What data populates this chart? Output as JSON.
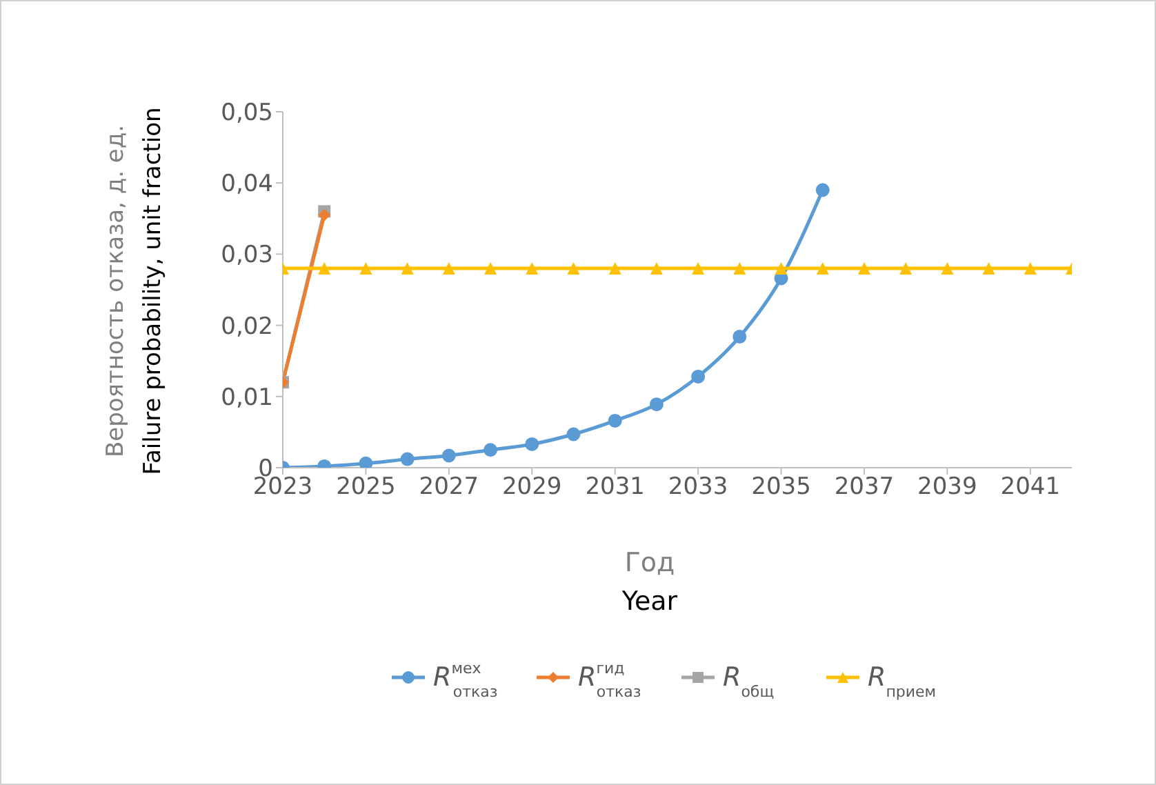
{
  "chart_data": {
    "type": "line",
    "xlabel": "Год\nYear",
    "ylabel": "Вероятность отказа, д. ед.\nFailure probability, unit fraction",
    "x": [
      2023,
      2024,
      2025,
      2026,
      2027,
      2028,
      2029,
      2030,
      2031,
      2032,
      2033,
      2034,
      2035,
      2036,
      2037,
      2038,
      2039,
      2040,
      2041,
      2042
    ],
    "xlim": [
      2023,
      2042
    ],
    "xticks": [
      2023,
      2025,
      2027,
      2029,
      2031,
      2033,
      2035,
      2037,
      2039,
      2041
    ],
    "ylim": [
      0,
      0.05
    ],
    "yticks": [
      0,
      {
        "value": 0.01,
        "label": "0,01"
      },
      {
        "value": 0.02,
        "label": "0,02"
      },
      {
        "value": 0.03,
        "label": "0,03"
      },
      {
        "value": 0.04,
        "label": "0,04"
      },
      {
        "value": 0.05,
        "label": "0,05"
      }
    ],
    "grid": false,
    "legend": "bottom",
    "line_style": "solid",
    "series": [
      {
        "name": "R$^{мех}$$_{отказ}$",
        "color": "#5b9bd5",
        "marker": "circle",
        "values": [
          0,
          0.0002,
          0.0006,
          0.0012,
          0.0017,
          0.0025,
          0.0033,
          0.0047,
          0.0066,
          0.0089,
          0.0128,
          0.0184,
          0.0266,
          0.039,
          null,
          null,
          null,
          null,
          null,
          null
        ]
      },
      {
        "name": "R$^{гид}$$_{отказ}$",
        "color": "#ed7d31",
        "marker": "diamond",
        "values": [
          0.012,
          0.0355,
          null,
          null,
          null,
          null,
          null,
          null,
          null,
          null,
          null,
          null,
          null,
          null,
          null,
          null,
          null,
          null,
          null,
          null
        ]
      },
      {
        "name": "R$_{общ}$",
        "color": "#a5a5a5",
        "marker": "square",
        "values": [
          0.012,
          0.036,
          null,
          null,
          null,
          null,
          null,
          null,
          null,
          null,
          null,
          null,
          null,
          null,
          null,
          null,
          null,
          null,
          null,
          null
        ]
      },
      {
        "name": "R$_{прием}$",
        "color": "#ffc000",
        "marker": "triangle",
        "values": [
          0.028,
          0.028,
          0.028,
          0.028,
          0.028,
          0.028,
          0.028,
          0.028,
          0.028,
          0.028,
          0.028,
          0.028,
          0.028,
          0.028,
          0.028,
          0.028,
          0.028,
          0.028,
          0.028,
          0.028
        ]
      }
    ]
  }
}
